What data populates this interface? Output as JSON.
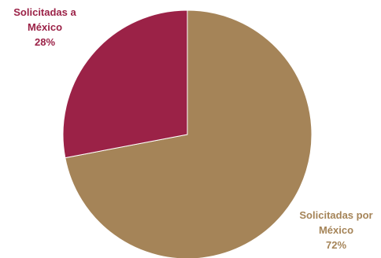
{
  "chart_data": {
    "type": "pie",
    "title": "",
    "slices": [
      {
        "label_lines": [
          "Solicitadas por",
          "México"
        ],
        "value": 72,
        "percent_text": "72%",
        "color": "#A58458",
        "label_color": "#A58458"
      },
      {
        "label_lines": [
          "Solicitadas a",
          "México"
        ],
        "value": 28,
        "percent_text": "28%",
        "color": "#9B2247",
        "label_color": "#9B2247"
      }
    ],
    "legend": "none"
  }
}
